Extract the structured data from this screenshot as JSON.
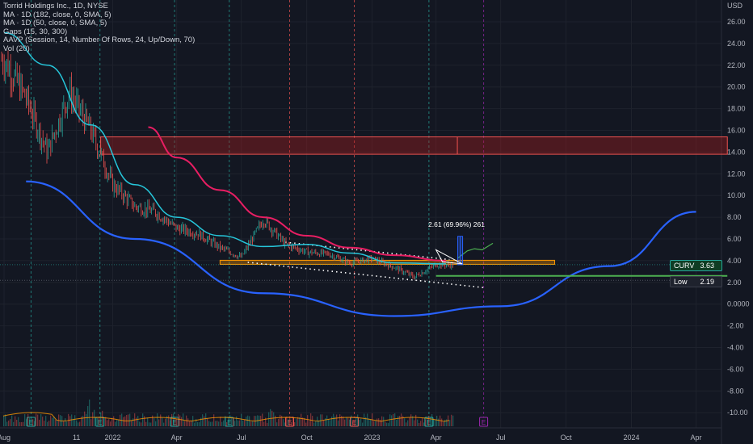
{
  "chart": {
    "title": "Torrid Holdings Inc., 1D, NYSE",
    "indicators": [
      "MA · 1D (182, close, 0, SMA, 5)",
      "MA · 1D (50, close, 0, SMA, 5)",
      "Gaps (15, 30, 300)",
      "AAVP (Session, 14, Number Of Rows, 24, Up/Down, 70)",
      "Vol (20)"
    ],
    "currency": "USD",
    "measure_label": "2.61 (69.96%) 261",
    "price_tags": [
      {
        "label": "CURV",
        "value": "3.63",
        "color": "#26a69a"
      },
      {
        "label": "Low",
        "value": "2.19",
        "color": "#787b86"
      }
    ],
    "earnings_marker": "E",
    "colors": {
      "background": "#131722",
      "ma182": "#e91e63",
      "ma50": "#26c6da",
      "curve": "#2962ff",
      "gap_zone": "#b71c1c",
      "support": "#ff9800",
      "low_line": "#4caf50",
      "projection": "#4caf50",
      "up_candle": "#26a69a",
      "down_candle": "#ef5350"
    }
  },
  "chart_data": {
    "type": "candlestick",
    "title": "Torrid Holdings Inc., 1D, NYSE",
    "y_axis": {
      "ticks": [
        "26.00",
        "24.00",
        "22.00",
        "20.00",
        "18.00",
        "16.00",
        "14.00",
        "12.00",
        "10.00",
        "8.00",
        "6.00",
        "4.00",
        "2.00",
        "0.0000",
        "-2.00",
        "-4.00",
        "-6.00",
        "-8.00",
        "-10.00"
      ],
      "range": [
        -11,
        27
      ]
    },
    "x_axis": {
      "ticks": [
        "Aug",
        "11",
        "2022",
        "Apr",
        "Jul",
        "Oct",
        "2023",
        "Apr",
        "Jul",
        "Oct",
        "2024",
        "Apr"
      ]
    },
    "price_path": [
      {
        "date": "2021-08",
        "price": 22.5
      },
      {
        "date": "2021-09",
        "price": 19.0
      },
      {
        "date": "2021-10",
        "price": 14.0
      },
      {
        "date": "2021-11",
        "price": 19.5
      },
      {
        "date": "2021-12",
        "price": 16.0
      },
      {
        "date": "2022-01",
        "price": 11.0
      },
      {
        "date": "2022-02",
        "price": 9.0
      },
      {
        "date": "2022-03",
        "price": 8.5
      },
      {
        "date": "2022-04",
        "price": 7.0
      },
      {
        "date": "2022-05",
        "price": 6.5
      },
      {
        "date": "2022-06",
        "price": 5.2
      },
      {
        "date": "2022-07",
        "price": 4.3
      },
      {
        "date": "2022-08",
        "price": 7.8
      },
      {
        "date": "2022-09",
        "price": 5.5
      },
      {
        "date": "2022-10",
        "price": 4.8
      },
      {
        "date": "2022-11",
        "price": 4.6
      },
      {
        "date": "2022-12",
        "price": 3.8
      },
      {
        "date": "2023-01",
        "price": 4.2
      },
      {
        "date": "2023-02",
        "price": 3.4
      },
      {
        "date": "2023-03",
        "price": 2.5
      },
      {
        "date": "2023-04",
        "price": 3.63
      }
    ],
    "series": [
      {
        "name": "MA · 1D (182, close, 0, SMA, 5)",
        "points": [
          {
            "date": "2022-02-20",
            "price": 16.3
          },
          {
            "date": "2022-04-01",
            "price": 13.5
          },
          {
            "date": "2022-06-01",
            "price": 10.5
          },
          {
            "date": "2022-08-01",
            "price": 8.0
          },
          {
            "date": "2022-10-01",
            "price": 6.3
          },
          {
            "date": "2022-12-01",
            "price": 5.2
          },
          {
            "date": "2023-02-01",
            "price": 4.5
          },
          {
            "date": "2023-04-15",
            "price": 4.0
          }
        ]
      },
      {
        "name": "MA · 1D (50, close, 0, SMA, 5)",
        "points": [
          {
            "date": "2021-08-01",
            "price": 25.0
          },
          {
            "date": "2021-10-01",
            "price": 22.0
          },
          {
            "date": "2021-12-01",
            "price": 16.5
          },
          {
            "date": "2022-02-01",
            "price": 11.0
          },
          {
            "date": "2022-04-01",
            "price": 8.0
          },
          {
            "date": "2022-06-01",
            "price": 6.3
          },
          {
            "date": "2022-08-01",
            "price": 5.3
          },
          {
            "date": "2022-10-01",
            "price": 5.5
          },
          {
            "date": "2022-12-01",
            "price": 4.7
          },
          {
            "date": "2023-02-01",
            "price": 3.8
          },
          {
            "date": "2023-04-15",
            "price": 3.7
          }
        ]
      }
    ],
    "zones": [
      {
        "type": "gap",
        "from_date": "2021-12-15",
        "to_date": "2024-05-15",
        "low": 13.8,
        "high": 15.4
      }
    ],
    "levels": [
      {
        "name": "support",
        "price": 3.85,
        "from_date": "2022-06-01",
        "to_date": "2023-09-15"
      },
      {
        "name": "low",
        "price": 2.6,
        "from_date": "2023-04-01",
        "to_date": "2024-05-15"
      }
    ],
    "curve": [
      {
        "date": "2021-09-01",
        "price": 11.3
      },
      {
        "date": "2022-02-01",
        "price": 6.0
      },
      {
        "date": "2022-08-01",
        "price": 1.0
      },
      {
        "date": "2023-02-01",
        "price": -1.1
      },
      {
        "date": "2023-07-01",
        "price": -0.2
      },
      {
        "date": "2023-12-01",
        "price": 3.5
      },
      {
        "date": "2024-04-01",
        "price": 8.5
      }
    ],
    "projection": [
      {
        "date": "2023-05-01",
        "price": 4.2
      },
      {
        "date": "2023-05-15",
        "price": 4.9
      },
      {
        "date": "2023-05-25",
        "price": 5.1
      },
      {
        "date": "2023-06-05",
        "price": 5.0
      },
      {
        "date": "2023-06-20",
        "price": 5.6
      }
    ],
    "measure": {
      "label": "2.61 (69.96%) 261",
      "from": 3.63,
      "to": 6.24
    },
    "earnings_dates": [
      "2021-09-08",
      "2021-12-14",
      "2022-03-29",
      "2022-06-14",
      "2022-09-07",
      "2022-12-07",
      "2023-03-22",
      "2023-06-07"
    ],
    "last_price": 3.63,
    "low": 2.19
  }
}
